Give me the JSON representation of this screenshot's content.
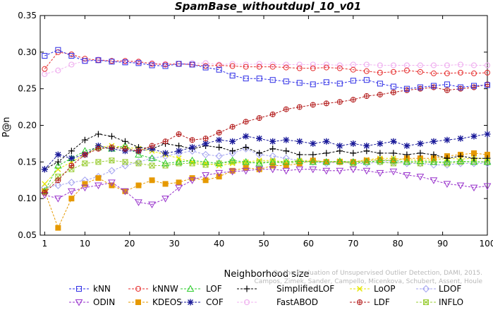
{
  "chart_data": {
    "type": "line",
    "title": "SpamBase_withoutdupl_10_v01",
    "xlabel": "Neighborhood size",
    "ylabel": "P@n",
    "xlim": [
      0,
      100
    ],
    "ylim": [
      0.05,
      0.35
    ],
    "x_ticks": [
      1,
      10,
      20,
      30,
      40,
      50,
      60,
      70,
      80,
      90,
      100
    ],
    "y_ticks": [
      0.05,
      0.1,
      0.15,
      0.2,
      0.25,
      0.3,
      0.35
    ],
    "grid": false,
    "legend_position": "bottom",
    "watermark": "Campos, Zimek, Sander, Campello, Micenkova, Schubert, Assent, Houle\nOn the Evaluation of Unsupervised Outlier Detection, DAMI, 2015.",
    "x_note": "values listed per k from 1 to 100 in steps of 3 (1,4,7,...,100); plotted as straight segments",
    "series": [
      {
        "name": "kNN",
        "color": "#2e2ee6",
        "marker": "square",
        "values": [
          0.295,
          0.303,
          0.295,
          0.288,
          0.289,
          0.287,
          0.286,
          0.285,
          0.282,
          0.281,
          0.284,
          0.283,
          0.279,
          0.276,
          0.268,
          0.264,
          0.264,
          0.262,
          0.26,
          0.258,
          0.256,
          0.259,
          0.257,
          0.261,
          0.262,
          0.257,
          0.253,
          0.25,
          0.252,
          0.254,
          0.256,
          0.252,
          0.254,
          0.255
        ]
      },
      {
        "name": "kNNW",
        "color": "#e62e2e",
        "marker": "circle",
        "values": [
          0.277,
          0.3,
          0.297,
          0.291,
          0.289,
          0.288,
          0.288,
          0.287,
          0.284,
          0.283,
          0.284,
          0.283,
          0.281,
          0.282,
          0.281,
          0.28,
          0.28,
          0.28,
          0.279,
          0.278,
          0.278,
          0.279,
          0.278,
          0.276,
          0.274,
          0.272,
          0.273,
          0.275,
          0.273,
          0.271,
          0.271,
          0.272,
          0.271,
          0.272
        ]
      },
      {
        "name": "LOF",
        "color": "#2ecc2e",
        "marker": "triangle-up",
        "values": [
          0.11,
          0.145,
          0.155,
          0.165,
          0.17,
          0.168,
          0.172,
          0.16,
          0.155,
          0.148,
          0.15,
          0.152,
          0.15,
          0.148,
          0.152,
          0.15,
          0.148,
          0.15,
          0.15,
          0.151,
          0.15,
          0.15,
          0.151,
          0.15,
          0.15,
          0.152,
          0.152,
          0.15,
          0.151,
          0.15,
          0.15,
          0.151,
          0.15,
          0.15
        ]
      },
      {
        "name": "SimplifiedLOF",
        "color": "#000000",
        "marker": "plus",
        "values": [
          0.14,
          0.15,
          0.165,
          0.18,
          0.188,
          0.185,
          0.178,
          0.17,
          0.168,
          0.175,
          0.172,
          0.168,
          0.172,
          0.17,
          0.165,
          0.17,
          0.162,
          0.168,
          0.165,
          0.16,
          0.16,
          0.162,
          0.165,
          0.162,
          0.165,
          0.162,
          0.162,
          0.16,
          0.162,
          0.16,
          0.155,
          0.158,
          0.155,
          0.155
        ]
      },
      {
        "name": "LoOP",
        "color": "#e6e600",
        "marker": "cross",
        "values": [
          0.12,
          0.14,
          0.15,
          0.16,
          0.17,
          0.172,
          0.17,
          0.168,
          0.165,
          0.16,
          0.155,
          0.15,
          0.148,
          0.145,
          0.148,
          0.15,
          0.152,
          0.152,
          0.15,
          0.152,
          0.152,
          0.15,
          0.151,
          0.15,
          0.153,
          0.155,
          0.155,
          0.153,
          0.152,
          0.153,
          0.155,
          0.154,
          0.155,
          0.155
        ]
      },
      {
        "name": "LDOF",
        "color": "#a3a3f0",
        "marker": "diamond",
        "values": [
          0.115,
          0.118,
          0.122,
          0.125,
          0.13,
          0.138,
          0.145,
          0.15,
          0.155,
          0.158,
          0.162,
          0.165,
          0.16,
          0.158,
          0.162,
          0.168,
          0.16,
          0.158,
          0.155,
          0.152,
          0.15,
          0.148,
          0.15,
          0.148,
          0.148,
          0.15,
          0.15,
          0.148,
          0.148,
          0.146,
          0.146,
          0.148,
          0.148,
          0.148
        ]
      },
      {
        "name": "ODIN",
        "color": "#9933cc",
        "marker": "triangle-down",
        "values": [
          0.105,
          0.1,
          0.11,
          0.115,
          0.118,
          0.122,
          0.11,
          0.095,
          0.092,
          0.1,
          0.115,
          0.125,
          0.132,
          0.135,
          0.137,
          0.138,
          0.14,
          0.14,
          0.138,
          0.14,
          0.14,
          0.138,
          0.138,
          0.14,
          0.138,
          0.135,
          0.137,
          0.132,
          0.13,
          0.125,
          0.12,
          0.118,
          0.115,
          0.117
        ]
      },
      {
        "name": "KDEOS",
        "color": "#e69900",
        "marker": "square-filled",
        "values": [
          0.11,
          0.06,
          0.1,
          0.12,
          0.128,
          0.118,
          0.11,
          0.118,
          0.125,
          0.12,
          0.122,
          0.128,
          0.125,
          0.13,
          0.138,
          0.142,
          0.14,
          0.145,
          0.145,
          0.148,
          0.152,
          0.15,
          0.15,
          0.15,
          0.152,
          0.153,
          0.152,
          0.155,
          0.155,
          0.155,
          0.158,
          0.16,
          0.162,
          0.16
        ]
      },
      {
        "name": "COF",
        "color": "#1a1a99",
        "marker": "asterisk",
        "values": [
          0.14,
          0.16,
          0.155,
          0.16,
          0.172,
          0.168,
          0.165,
          0.165,
          0.168,
          0.162,
          0.165,
          0.17,
          0.175,
          0.18,
          0.178,
          0.185,
          0.182,
          0.178,
          0.18,
          0.178,
          0.175,
          0.178,
          0.172,
          0.175,
          0.172,
          0.175,
          0.178,
          0.172,
          0.175,
          0.178,
          0.18,
          0.182,
          0.185,
          0.188
        ]
      },
      {
        "name": "FastABOD",
        "color": "#f0b3f0",
        "marker": "circle-light",
        "values": [
          0.27,
          0.275,
          0.283,
          0.288,
          0.29,
          0.288,
          0.287,
          0.286,
          0.285,
          0.284,
          0.284,
          0.285,
          0.285,
          0.283,
          0.284,
          0.283,
          0.284,
          0.283,
          0.283,
          0.283,
          0.283,
          0.283,
          0.282,
          0.283,
          0.283,
          0.282,
          0.282,
          0.282,
          0.282,
          0.282,
          0.282,
          0.283,
          0.282,
          0.282
        ]
      },
      {
        "name": "LDF",
        "color": "#b31a1a",
        "marker": "circle-filled",
        "values": [
          0.108,
          0.125,
          0.145,
          0.16,
          0.168,
          0.17,
          0.168,
          0.165,
          0.172,
          0.178,
          0.188,
          0.18,
          0.182,
          0.19,
          0.198,
          0.205,
          0.21,
          0.215,
          0.222,
          0.225,
          0.228,
          0.23,
          0.232,
          0.235,
          0.24,
          0.242,
          0.245,
          0.248,
          0.25,
          0.252,
          0.248,
          0.25,
          0.252,
          0.256
        ]
      },
      {
        "name": "INFLO",
        "color": "#99cc33",
        "marker": "square-cross",
        "values": [
          0.11,
          0.13,
          0.14,
          0.148,
          0.15,
          0.152,
          0.15,
          0.148,
          0.145,
          0.145,
          0.148,
          0.148,
          0.146,
          0.148,
          0.15,
          0.148,
          0.15,
          0.15,
          0.148,
          0.15,
          0.15,
          0.15,
          0.15,
          0.148,
          0.15,
          0.15,
          0.148,
          0.15,
          0.148,
          0.15,
          0.148,
          0.15,
          0.15,
          0.15
        ]
      }
    ],
    "legend_rows": [
      [
        "kNN",
        "kNNW",
        "LOF",
        "SimplifiedLOF",
        "LoOP",
        "LDOF"
      ],
      [
        "ODIN",
        "KDEOS",
        "COF",
        "FastABOD",
        "LDF",
        "INFLO"
      ]
    ]
  }
}
